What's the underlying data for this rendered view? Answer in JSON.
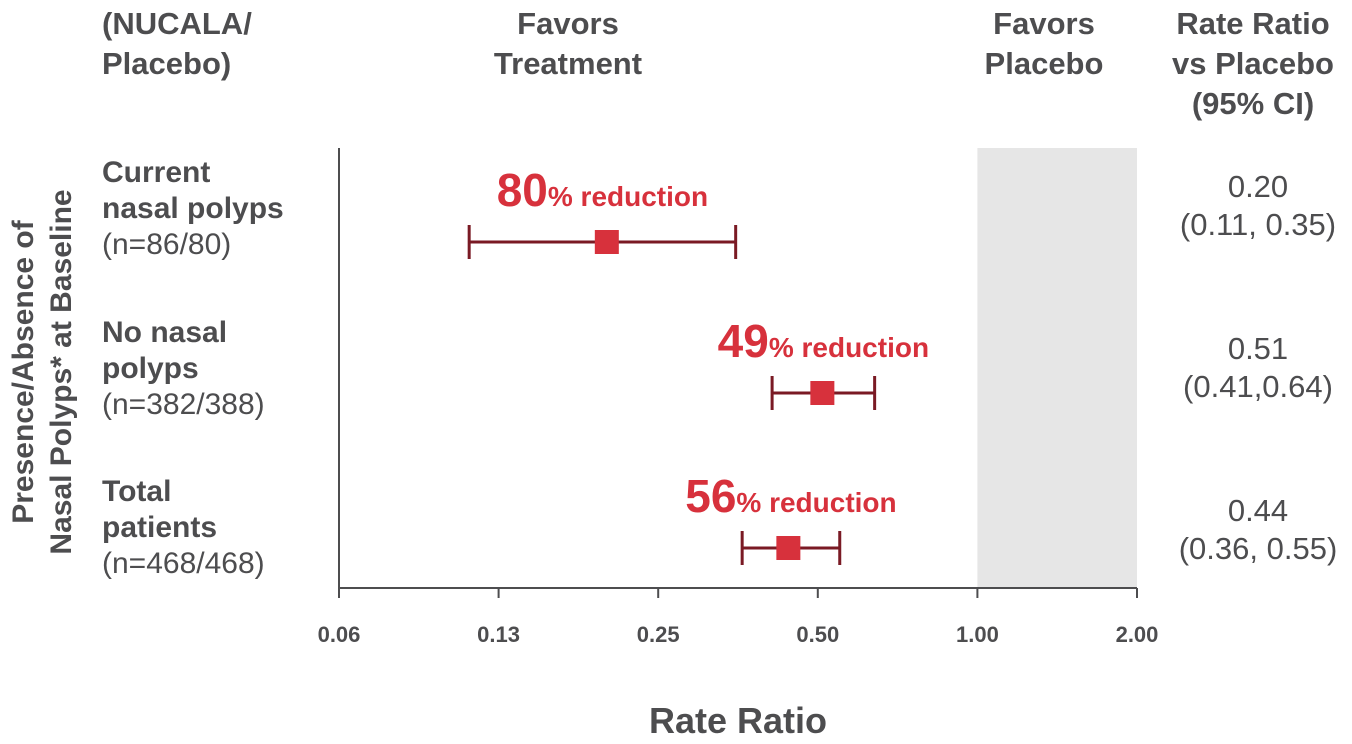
{
  "headers": {
    "subgroup_line1": "(NUCALA/",
    "subgroup_line2": "Placebo)",
    "favors_treatment_line1": "Favors",
    "favors_treatment_line2": "Treatment",
    "favors_placebo_line1": "Favors",
    "favors_placebo_line2": "Placebo",
    "rate_ratio_line1": "Rate Ratio",
    "rate_ratio_line2": "vs Placebo",
    "rate_ratio_line3": "(95% CI)"
  },
  "y_axis_title_line1": "Presence/Absence of",
  "y_axis_title_line2": "Nasal Polyps* at Baseline",
  "subgroups": [
    {
      "name_line1": "Current",
      "name_line2": "nasal polyps",
      "n": "(n=86/80)",
      "rr": "0.20",
      "ci": "(0.11, 0.35)",
      "pct": "80",
      "pct_suffix": "% reduction"
    },
    {
      "name_line1": "No nasal",
      "name_line2": "polyps",
      "n": "(n=382/388)",
      "rr": "0.51",
      "ci": "(0.41,0.64)",
      "pct": "49",
      "pct_suffix": "% reduction"
    },
    {
      "name_line1": "Total",
      "name_line2": "patients",
      "n": "(n=468/468)",
      "rr": "0.44",
      "ci": "(0.36, 0.55)",
      "pct": "56",
      "pct_suffix": "% reduction"
    }
  ],
  "chart_data": {
    "type": "forest",
    "title": "",
    "xlabel": "Rate Ratio",
    "ylabel": "Presence/Absence of Nasal Polyps* at Baseline",
    "x_scale": "log2",
    "ticks": [
      0.0625,
      0.125,
      0.25,
      0.5,
      1.0,
      2.0
    ],
    "tick_labels": [
      "0.06",
      "0.13",
      "0.25",
      "0.50",
      "1.00",
      "2.00"
    ],
    "xlim": [
      0.0625,
      2.0
    ],
    "favors_placebo_region": [
      1.0,
      2.0
    ],
    "series": [
      {
        "name": "Current nasal polyps",
        "value": 0.2,
        "ci": [
          0.11,
          0.35
        ]
      },
      {
        "name": "No nasal polyps",
        "value": 0.51,
        "ci": [
          0.41,
          0.64
        ]
      },
      {
        "name": "Total patients",
        "value": 0.44,
        "ci": [
          0.36,
          0.55
        ]
      }
    ],
    "colors": {
      "marker": "#d7313c",
      "ci_line": "#7a1a24",
      "shade": "#e6e6e6",
      "axis": "#4d4d4f",
      "label": "#d7313c"
    }
  }
}
